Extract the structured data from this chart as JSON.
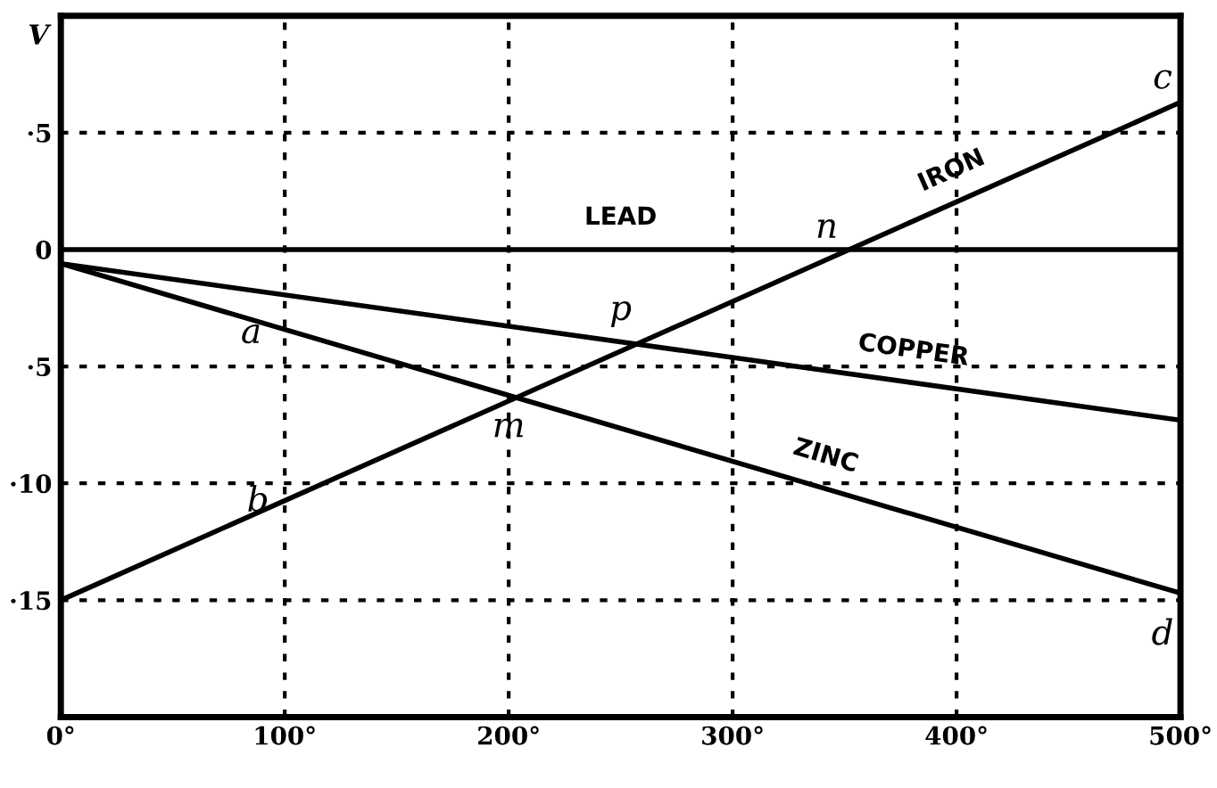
{
  "chart_data": {
    "type": "line",
    "ylabel": "V",
    "x": [
      0,
      500
    ],
    "series": [
      {
        "name": "LEAD",
        "color": "#000000",
        "values": [
          0,
          0
        ]
      },
      {
        "name": "IRON",
        "color": "#000000",
        "values": [
          -15,
          6.3
        ]
      },
      {
        "name": "COPPER",
        "color": "#000000",
        "values": [
          -0.6,
          -7.3
        ]
      },
      {
        "name": "ZINC",
        "color": "#000000",
        "values": [
          -0.6,
          -14.7
        ]
      }
    ],
    "xlim": [
      0,
      500
    ],
    "ylim": [
      -20,
      10
    ],
    "xticks": [
      {
        "value": 0,
        "label": "0°"
      },
      {
        "value": 100,
        "label": "100°"
      },
      {
        "value": 200,
        "label": "200°"
      },
      {
        "value": 300,
        "label": "300°"
      },
      {
        "value": 400,
        "label": "400°"
      },
      {
        "value": 500,
        "label": "500°"
      }
    ],
    "yticks": [
      {
        "value": 5,
        "label": "·5"
      },
      0,
      {
        "value": -5,
        "label": "·5"
      },
      {
        "value": -10,
        "label": "·10"
      },
      {
        "value": -15,
        "label": "·15"
      }
    ],
    "grid": true,
    "line_style": "solid",
    "marker": "none",
    "annotations": [
      "a",
      "b",
      "c",
      "d",
      "m",
      "n",
      "p"
    ]
  }
}
